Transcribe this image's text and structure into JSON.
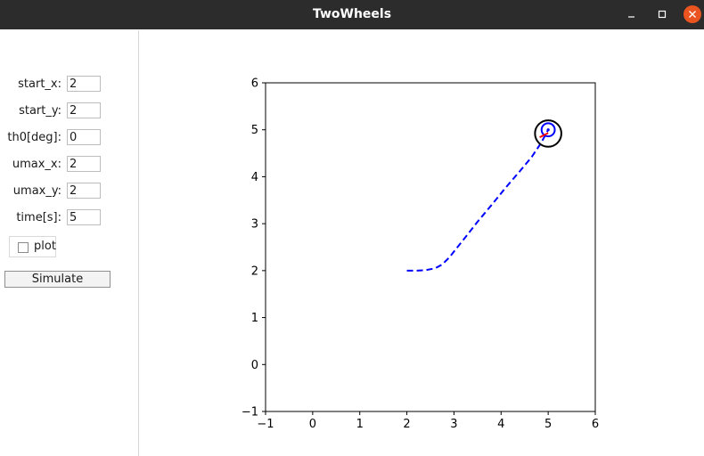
{
  "window": {
    "title": "TwoWheels"
  },
  "controls": {
    "fields": [
      {
        "label": "start_x:",
        "value": "2"
      },
      {
        "label": "start_y:",
        "value": "2"
      },
      {
        "label": "th0[deg]:",
        "value": "0"
      },
      {
        "label": "umax_x:",
        "value": "2"
      },
      {
        "label": "umax_y:",
        "value": "2"
      },
      {
        "label": "time[s]:",
        "value": "5"
      }
    ],
    "plot_label": "plot",
    "plot_checked": false,
    "simulate_label": "Simulate"
  },
  "chart_data": {
    "type": "line",
    "xlim": [
      -1,
      6
    ],
    "ylim": [
      -1,
      6
    ],
    "x_ticks": [
      "−1",
      "0",
      "1",
      "2",
      "3",
      "4",
      "5",
      "6"
    ],
    "y_ticks": [
      "−1",
      "0",
      "1",
      "2",
      "3",
      "4",
      "5",
      "6"
    ],
    "grid": false,
    "series": [
      {
        "style": "dashed",
        "color": "#0000ff",
        "points": [
          [
            2.0,
            2.0
          ],
          [
            2.2,
            2.0
          ],
          [
            2.4,
            2.01
          ],
          [
            2.6,
            2.05
          ],
          [
            2.75,
            2.13
          ],
          [
            2.9,
            2.28
          ],
          [
            3.05,
            2.47
          ],
          [
            3.25,
            2.72
          ],
          [
            3.5,
            3.04
          ],
          [
            3.8,
            3.4
          ],
          [
            4.1,
            3.77
          ],
          [
            4.4,
            4.12
          ],
          [
            4.65,
            4.42
          ],
          [
            4.85,
            4.72
          ],
          [
            5.0,
            5.0
          ]
        ]
      }
    ],
    "robot": {
      "center": [
        5.0,
        4.92
      ],
      "body_radius": 0.28,
      "inner_center": [
        5.0,
        5.0
      ],
      "inner_radius": 0.14,
      "heading_line": [
        [
          4.82,
          4.84
        ],
        [
          5.0,
          4.93
        ]
      ],
      "body_color": "#000000",
      "inner_color": "#0000ff",
      "heading_color": "#ff0000"
    }
  }
}
